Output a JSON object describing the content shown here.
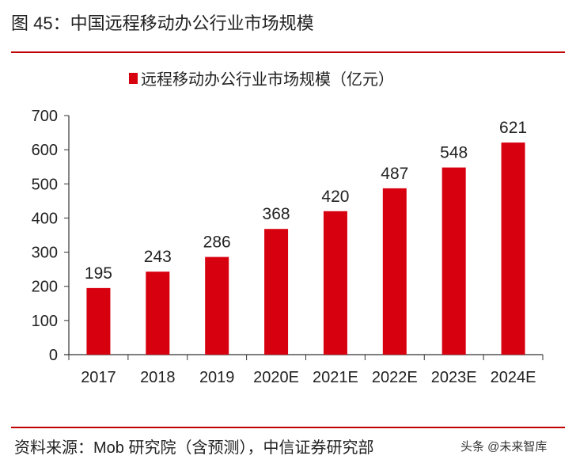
{
  "header": {
    "title": "图 45：中国远程移动办公行业市场规模"
  },
  "footer": {
    "source": "资料来源：Mob 研究院（含预测），中信证券研究部",
    "watermark": "头条 @未来智库"
  },
  "colors": {
    "bar": "#d7000f",
    "rule": "#c00000"
  },
  "chart_data": {
    "type": "bar",
    "categories": [
      "2017",
      "2018",
      "2019",
      "2020E",
      "2021E",
      "2022E",
      "2023E",
      "2024E"
    ],
    "series": [
      {
        "name": "远程移动办公行业市场规模（亿元）",
        "values": [
          195,
          243,
          286,
          368,
          420,
          487,
          548,
          621
        ]
      }
    ],
    "yticks": [
      0,
      100,
      200,
      300,
      400,
      500,
      600,
      700
    ],
    "ylim": [
      0,
      700
    ],
    "legend": "top-center",
    "grid": false,
    "data_labels": true
  }
}
